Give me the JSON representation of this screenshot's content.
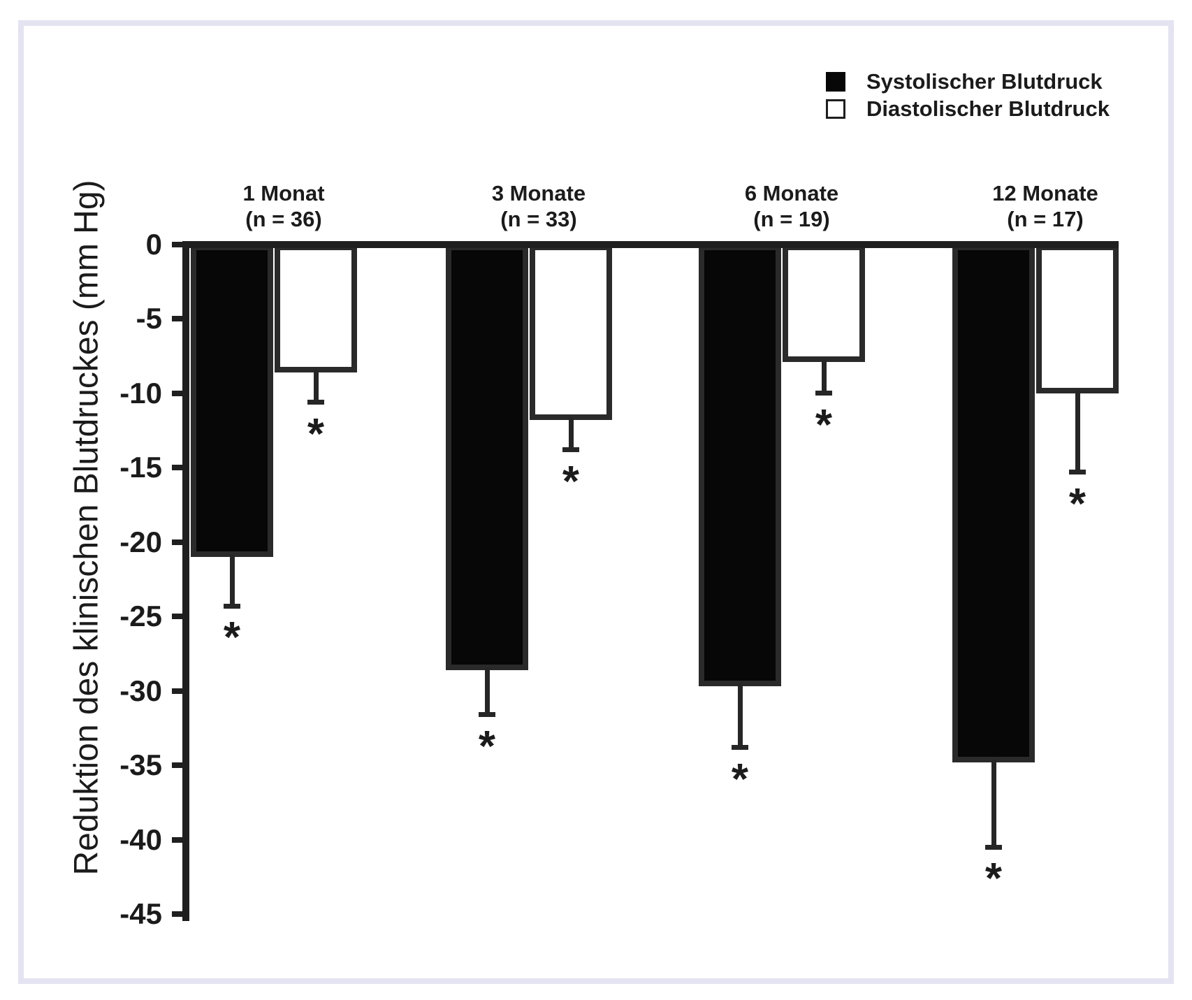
{
  "figure": {
    "background": "#ffffff",
    "frame_color": "#e3e3f1"
  },
  "chart_data": {
    "type": "bar",
    "orientation": "vertical-negative",
    "title": "",
    "ylabel": "Reduktion des klinischen Blutdruckes (mm Hg)",
    "xlabel": "",
    "ylim": [
      -45,
      0
    ],
    "ytick_interval": 5,
    "ytick_labels": [
      "0",
      "-5",
      "-10",
      "-15",
      "-20",
      "-25",
      "-30",
      "-35",
      "-40",
      "-45"
    ],
    "grid": false,
    "legend_position": "top-right",
    "categories": [
      {
        "label": "1 Monat",
        "n_label": "(n = 36)"
      },
      {
        "label": "3 Monate",
        "n_label": "(n = 33)"
      },
      {
        "label": "6 Monate",
        "n_label": "(n = 19)"
      },
      {
        "label": "12 Monate",
        "n_label": "(n = 17)"
      }
    ],
    "series": [
      {
        "name": "Systolischer Blutdruck",
        "swatch": "black",
        "fill": "#070707",
        "values": [
          -21.0,
          -28.6,
          -29.7,
          -34.8
        ],
        "errors": [
          3.3,
          3.0,
          4.1,
          5.7
        ],
        "significance": [
          "*",
          "*",
          "*",
          "*"
        ]
      },
      {
        "name": "Diastolischer Blutdruck",
        "swatch": "white",
        "fill": "#ffffff",
        "values": [
          -8.6,
          -11.8,
          -7.9,
          -10.0
        ],
        "errors": [
          2.0,
          2.0,
          2.1,
          5.3
        ],
        "significance": [
          "*",
          "*",
          "*",
          "*"
        ]
      }
    ],
    "colors": {
      "bar_border": "#2a2a2a",
      "axis": "#1f1f1f",
      "text": "#1b1b1b"
    }
  }
}
